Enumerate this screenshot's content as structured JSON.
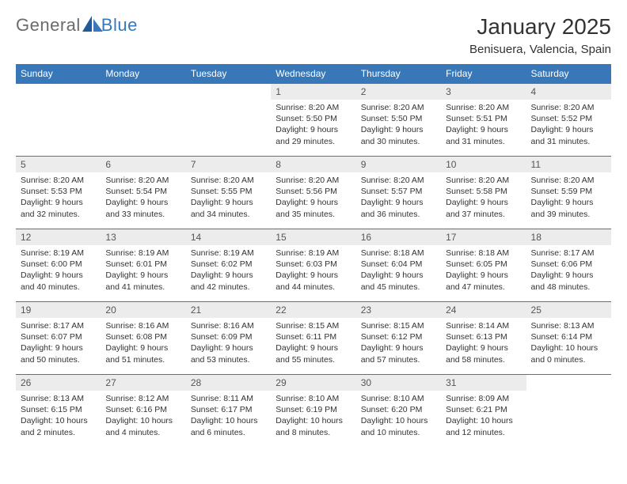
{
  "logo": {
    "general": "General",
    "blue": "Blue"
  },
  "title": "January 2025",
  "location": "Benisuera, Valencia, Spain",
  "colors": {
    "header_bg": "#3878b8",
    "header_text": "#ffffff",
    "daynum_bg": "#ececec",
    "border": "#3878b8",
    "text": "#333333",
    "logo_gray": "#6b6b6b",
    "logo_blue": "#3878b8"
  },
  "day_labels": [
    "Sunday",
    "Monday",
    "Tuesday",
    "Wednesday",
    "Thursday",
    "Friday",
    "Saturday"
  ],
  "weeks": [
    [
      null,
      null,
      null,
      {
        "n": "1",
        "sr": "Sunrise: 8:20 AM",
        "ss": "Sunset: 5:50 PM",
        "dl": "Daylight: 9 hours and 29 minutes."
      },
      {
        "n": "2",
        "sr": "Sunrise: 8:20 AM",
        "ss": "Sunset: 5:50 PM",
        "dl": "Daylight: 9 hours and 30 minutes."
      },
      {
        "n": "3",
        "sr": "Sunrise: 8:20 AM",
        "ss": "Sunset: 5:51 PM",
        "dl": "Daylight: 9 hours and 31 minutes."
      },
      {
        "n": "4",
        "sr": "Sunrise: 8:20 AM",
        "ss": "Sunset: 5:52 PM",
        "dl": "Daylight: 9 hours and 31 minutes."
      }
    ],
    [
      {
        "n": "5",
        "sr": "Sunrise: 8:20 AM",
        "ss": "Sunset: 5:53 PM",
        "dl": "Daylight: 9 hours and 32 minutes."
      },
      {
        "n": "6",
        "sr": "Sunrise: 8:20 AM",
        "ss": "Sunset: 5:54 PM",
        "dl": "Daylight: 9 hours and 33 minutes."
      },
      {
        "n": "7",
        "sr": "Sunrise: 8:20 AM",
        "ss": "Sunset: 5:55 PM",
        "dl": "Daylight: 9 hours and 34 minutes."
      },
      {
        "n": "8",
        "sr": "Sunrise: 8:20 AM",
        "ss": "Sunset: 5:56 PM",
        "dl": "Daylight: 9 hours and 35 minutes."
      },
      {
        "n": "9",
        "sr": "Sunrise: 8:20 AM",
        "ss": "Sunset: 5:57 PM",
        "dl": "Daylight: 9 hours and 36 minutes."
      },
      {
        "n": "10",
        "sr": "Sunrise: 8:20 AM",
        "ss": "Sunset: 5:58 PM",
        "dl": "Daylight: 9 hours and 37 minutes."
      },
      {
        "n": "11",
        "sr": "Sunrise: 8:20 AM",
        "ss": "Sunset: 5:59 PM",
        "dl": "Daylight: 9 hours and 39 minutes."
      }
    ],
    [
      {
        "n": "12",
        "sr": "Sunrise: 8:19 AM",
        "ss": "Sunset: 6:00 PM",
        "dl": "Daylight: 9 hours and 40 minutes."
      },
      {
        "n": "13",
        "sr": "Sunrise: 8:19 AM",
        "ss": "Sunset: 6:01 PM",
        "dl": "Daylight: 9 hours and 41 minutes."
      },
      {
        "n": "14",
        "sr": "Sunrise: 8:19 AM",
        "ss": "Sunset: 6:02 PM",
        "dl": "Daylight: 9 hours and 42 minutes."
      },
      {
        "n": "15",
        "sr": "Sunrise: 8:19 AM",
        "ss": "Sunset: 6:03 PM",
        "dl": "Daylight: 9 hours and 44 minutes."
      },
      {
        "n": "16",
        "sr": "Sunrise: 8:18 AM",
        "ss": "Sunset: 6:04 PM",
        "dl": "Daylight: 9 hours and 45 minutes."
      },
      {
        "n": "17",
        "sr": "Sunrise: 8:18 AM",
        "ss": "Sunset: 6:05 PM",
        "dl": "Daylight: 9 hours and 47 minutes."
      },
      {
        "n": "18",
        "sr": "Sunrise: 8:17 AM",
        "ss": "Sunset: 6:06 PM",
        "dl": "Daylight: 9 hours and 48 minutes."
      }
    ],
    [
      {
        "n": "19",
        "sr": "Sunrise: 8:17 AM",
        "ss": "Sunset: 6:07 PM",
        "dl": "Daylight: 9 hours and 50 minutes."
      },
      {
        "n": "20",
        "sr": "Sunrise: 8:16 AM",
        "ss": "Sunset: 6:08 PM",
        "dl": "Daylight: 9 hours and 51 minutes."
      },
      {
        "n": "21",
        "sr": "Sunrise: 8:16 AM",
        "ss": "Sunset: 6:09 PM",
        "dl": "Daylight: 9 hours and 53 minutes."
      },
      {
        "n": "22",
        "sr": "Sunrise: 8:15 AM",
        "ss": "Sunset: 6:11 PM",
        "dl": "Daylight: 9 hours and 55 minutes."
      },
      {
        "n": "23",
        "sr": "Sunrise: 8:15 AM",
        "ss": "Sunset: 6:12 PM",
        "dl": "Daylight: 9 hours and 57 minutes."
      },
      {
        "n": "24",
        "sr": "Sunrise: 8:14 AM",
        "ss": "Sunset: 6:13 PM",
        "dl": "Daylight: 9 hours and 58 minutes."
      },
      {
        "n": "25",
        "sr": "Sunrise: 8:13 AM",
        "ss": "Sunset: 6:14 PM",
        "dl": "Daylight: 10 hours and 0 minutes."
      }
    ],
    [
      {
        "n": "26",
        "sr": "Sunrise: 8:13 AM",
        "ss": "Sunset: 6:15 PM",
        "dl": "Daylight: 10 hours and 2 minutes."
      },
      {
        "n": "27",
        "sr": "Sunrise: 8:12 AM",
        "ss": "Sunset: 6:16 PM",
        "dl": "Daylight: 10 hours and 4 minutes."
      },
      {
        "n": "28",
        "sr": "Sunrise: 8:11 AM",
        "ss": "Sunset: 6:17 PM",
        "dl": "Daylight: 10 hours and 6 minutes."
      },
      {
        "n": "29",
        "sr": "Sunrise: 8:10 AM",
        "ss": "Sunset: 6:19 PM",
        "dl": "Daylight: 10 hours and 8 minutes."
      },
      {
        "n": "30",
        "sr": "Sunrise: 8:10 AM",
        "ss": "Sunset: 6:20 PM",
        "dl": "Daylight: 10 hours and 10 minutes."
      },
      {
        "n": "31",
        "sr": "Sunrise: 8:09 AM",
        "ss": "Sunset: 6:21 PM",
        "dl": "Daylight: 10 hours and 12 minutes."
      },
      null
    ]
  ]
}
